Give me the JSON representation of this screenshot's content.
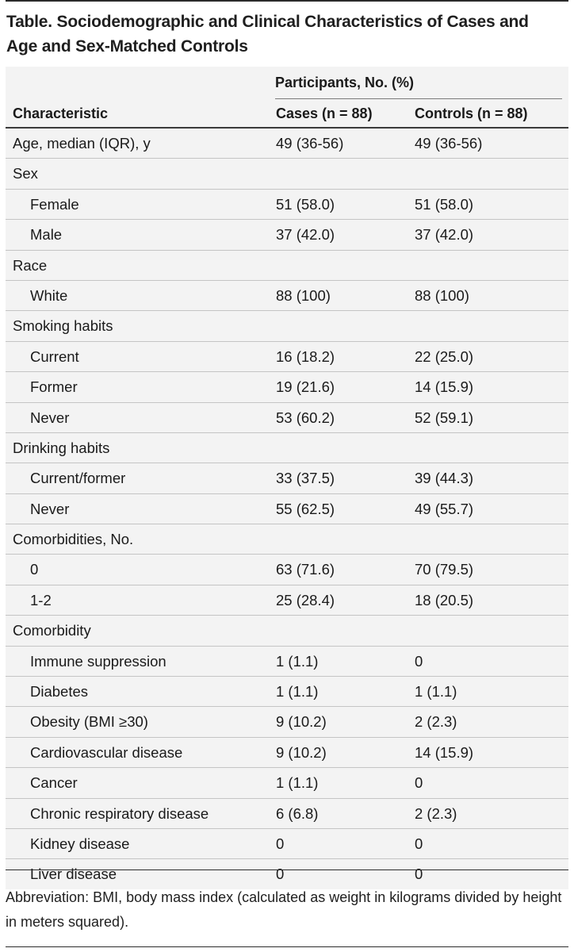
{
  "title": "Table. Sociodemographic and Clinical Characteristics of Cases and Age and Sex-Matched Controls",
  "header": {
    "span_label": "Participants, No. (%)",
    "characteristic": "Characteristic",
    "cases": "Cases (n = 88)",
    "controls": "Controls (n = 88)"
  },
  "rows": [
    {
      "label": "Age, median (IQR), y",
      "indent": false,
      "cases": "49 (36-56)",
      "controls": "49 (36-56)"
    },
    {
      "label": "Sex",
      "indent": false,
      "cases": "",
      "controls": ""
    },
    {
      "label": "Female",
      "indent": true,
      "cases": "51 (58.0)",
      "controls": "51 (58.0)"
    },
    {
      "label": "Male",
      "indent": true,
      "cases": "37 (42.0)",
      "controls": "37 (42.0)"
    },
    {
      "label": "Race",
      "indent": false,
      "cases": "",
      "controls": ""
    },
    {
      "label": "White",
      "indent": true,
      "cases": "88 (100)",
      "controls": "88 (100)"
    },
    {
      "label": "Smoking habits",
      "indent": false,
      "cases": "",
      "controls": ""
    },
    {
      "label": "Current",
      "indent": true,
      "cases": "16 (18.2)",
      "controls": "22 (25.0)"
    },
    {
      "label": "Former",
      "indent": true,
      "cases": "19 (21.6)",
      "controls": "14 (15.9)"
    },
    {
      "label": "Never",
      "indent": true,
      "cases": "53 (60.2)",
      "controls": "52 (59.1)"
    },
    {
      "label": "Drinking habits",
      "indent": false,
      "cases": "",
      "controls": ""
    },
    {
      "label": "Current/former",
      "indent": true,
      "cases": "33 (37.5)",
      "controls": "39 (44.3)"
    },
    {
      "label": "Never",
      "indent": true,
      "cases": "55 (62.5)",
      "controls": "49 (55.7)"
    },
    {
      "label": "Comorbidities, No.",
      "indent": false,
      "cases": "",
      "controls": ""
    },
    {
      "label": "0",
      "indent": true,
      "cases": "63 (71.6)",
      "controls": "70 (79.5)"
    },
    {
      "label": "1-2",
      "indent": true,
      "cases": "25 (28.4)",
      "controls": "18 (20.5)"
    },
    {
      "label": "Comorbidity",
      "indent": false,
      "cases": "",
      "controls": ""
    },
    {
      "label": "Immune suppression",
      "indent": true,
      "cases": "1 (1.1)",
      "controls": "0"
    },
    {
      "label": "Diabetes",
      "indent": true,
      "cases": "1 (1.1)",
      "controls": "1 (1.1)"
    },
    {
      "label": "Obesity (BMI ≥30)",
      "indent": true,
      "cases": "9 (10.2)",
      "controls": "2 (2.3)"
    },
    {
      "label": "Cardiovascular disease",
      "indent": true,
      "cases": "9 (10.2)",
      "controls": "14 (15.9)"
    },
    {
      "label": "Cancer",
      "indent": true,
      "cases": "1 (1.1)",
      "controls": "0"
    },
    {
      "label": "Chronic respiratory disease",
      "indent": true,
      "cases": "6 (6.8)",
      "controls": "2 (2.3)"
    },
    {
      "label": "Kidney disease",
      "indent": true,
      "cases": "0",
      "controls": "0"
    },
    {
      "label": "Liver disease",
      "indent": true,
      "cases": "0",
      "controls": "0"
    }
  ],
  "footnote": "Abbreviation: BMI, body mass index (calculated as weight in kilograms divided by height in meters squared)."
}
